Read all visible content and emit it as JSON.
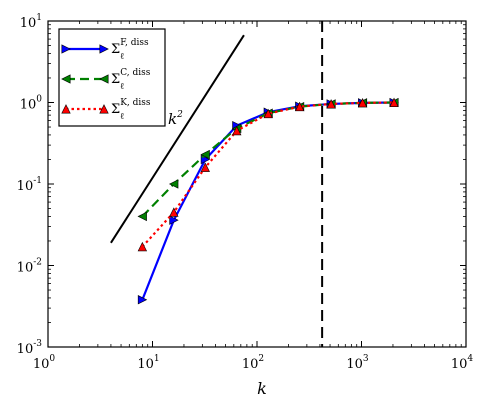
{
  "chart_data": {
    "type": "line",
    "xlabel": "k",
    "xscale": "log",
    "yscale": "log",
    "xlim": [
      1,
      10000
    ],
    "ylim": [
      0.001,
      10
    ],
    "x_ticks": [
      {
        "base": "10",
        "exp": "0",
        "value": 1
      },
      {
        "base": "10",
        "exp": "1",
        "value": 10
      },
      {
        "base": "10",
        "exp": "2",
        "value": 100
      },
      {
        "base": "10",
        "exp": "3",
        "value": 1000
      },
      {
        "base": "10",
        "exp": "4",
        "value": 10000
      }
    ],
    "y_ticks": [
      {
        "base": "10",
        "exp": "-3",
        "value": 0.001
      },
      {
        "base": "10",
        "exp": "-2",
        "value": 0.01
      },
      {
        "base": "10",
        "exp": "-1",
        "value": 0.1
      },
      {
        "base": "10",
        "exp": "0",
        "value": 1
      },
      {
        "base": "10",
        "exp": "1",
        "value": 10
      }
    ],
    "legend_position": "top-left",
    "series": [
      {
        "name": "Σ_ℓ^{F, diss}",
        "legend_base": "Σ",
        "legend_sub": "ℓ",
        "legend_sup": "F, diss",
        "color": "#0000ff",
        "linestyle": "solid",
        "marker": "triangle-right",
        "x": [
          8,
          16,
          32,
          64,
          128,
          256,
          512,
          1024,
          2048
        ],
        "y": [
          0.0038,
          0.036,
          0.2,
          0.52,
          0.76,
          0.9,
          0.96,
          0.99,
          1.0
        ]
      },
      {
        "name": "Σ_ℓ^{C, diss}",
        "legend_base": "Σ",
        "legend_sub": "ℓ",
        "legend_sup": "C, diss",
        "color": "#008000",
        "linestyle": "dashed",
        "marker": "triangle-left",
        "x": [
          8,
          16,
          32,
          64,
          128,
          256,
          512,
          1024,
          2048
        ],
        "y": [
          0.04,
          0.1,
          0.23,
          0.48,
          0.74,
          0.89,
          0.96,
          0.99,
          1.0
        ]
      },
      {
        "name": "Σ_ℓ^{K, diss}",
        "legend_base": "Σ",
        "legend_sub": "ℓ",
        "legend_sup": "K, diss",
        "color": "#ff0000",
        "linestyle": "dotted",
        "marker": "triangle-up",
        "x": [
          8,
          16,
          32,
          64,
          128,
          256,
          512,
          1024,
          2048
        ],
        "y": [
          0.017,
          0.045,
          0.16,
          0.45,
          0.73,
          0.89,
          0.96,
          0.99,
          1.0
        ]
      }
    ],
    "reference_line": {
      "label": "k",
      "label_sup": "2",
      "x": [
        4,
        75
      ],
      "y": [
        0.019,
        6.7
      ],
      "color": "#000000"
    },
    "vertical_line": {
      "x": 420,
      "color": "#000000",
      "linestyle": "dashed"
    }
  }
}
